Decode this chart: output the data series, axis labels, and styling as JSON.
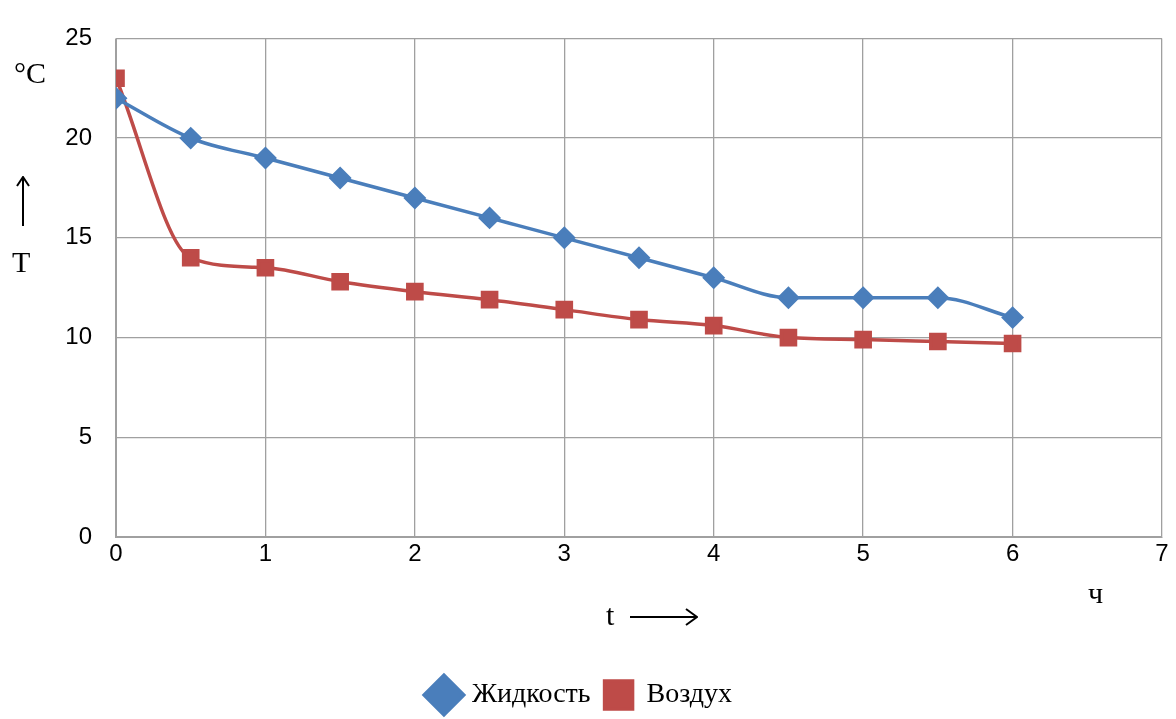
{
  "chart_data": {
    "type": "line",
    "xlabel": "t",
    "ylabel": "T",
    "annotations": [
      "°C",
      "ч"
    ],
    "x": [
      0,
      0.5,
      1,
      1.5,
      2,
      2.5,
      3,
      3.5,
      4,
      4.5,
      5,
      5.5,
      6
    ],
    "series": [
      {
        "name": "Жидкость",
        "color": "#4a7ebb",
        "marker": "diamond",
        "values": [
          22,
          20,
          19,
          18,
          17,
          16,
          15,
          14,
          13,
          12,
          12,
          12,
          11
        ]
      },
      {
        "name": "Воздух",
        "color": "#be4b48",
        "marker": "square",
        "values": [
          23,
          14,
          13.5,
          12.8,
          12.3,
          11.9,
          11.4,
          10.9,
          10.6,
          10.0,
          9.9,
          9.8,
          9.7
        ]
      }
    ],
    "xlim": [
      0,
      7
    ],
    "xticks": [
      0,
      1,
      2,
      3,
      4,
      5,
      6,
      7
    ],
    "ylim": [
      0,
      25
    ],
    "yticks": [
      0,
      5,
      10,
      15,
      20,
      25
    ],
    "grid": true,
    "legend": "bottom",
    "line_style": "solid"
  }
}
